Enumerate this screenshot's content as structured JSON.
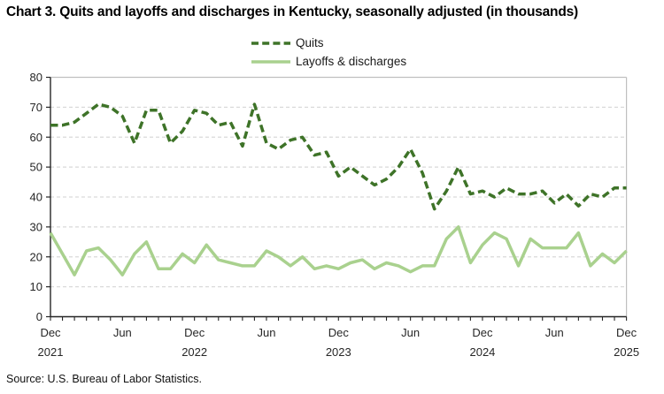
{
  "title": "Chart 3. Quits and layoffs and discharges in Kentucky, seasonally adjusted (in thousands)",
  "source": "Source: U.S. Bureau of Labor Statistics.",
  "chart_data": {
    "type": "line",
    "x_start": "Dec 2021",
    "x_end": "Dec 2025",
    "x_interval": "monthly",
    "ylim": [
      0,
      80
    ],
    "y_ticks": [
      0,
      10,
      20,
      30,
      40,
      50,
      60,
      70,
      80
    ],
    "grid": "horizontal-dashed",
    "legend_position": "top-center",
    "x_ticks": [
      {
        "index": 0,
        "label": "Dec",
        "year": "2021"
      },
      {
        "index": 6,
        "label": "Jun"
      },
      {
        "index": 12,
        "label": "Dec",
        "year": "2022"
      },
      {
        "index": 18,
        "label": "Jun"
      },
      {
        "index": 24,
        "label": "Dec",
        "year": "2023"
      },
      {
        "index": 30,
        "label": "Jun"
      },
      {
        "index": 36,
        "label": "Dec",
        "year": "2024"
      },
      {
        "index": 42,
        "label": "Jun"
      },
      {
        "index": 48,
        "label": "Dec",
        "year": "2025"
      }
    ],
    "series": [
      {
        "name": "Quits",
        "color": "#3e7328",
        "dashed": true,
        "values": [
          64,
          64,
          65,
          68,
          71,
          70,
          67,
          58,
          69,
          69,
          58,
          62,
          69,
          68,
          64,
          65,
          57,
          71,
          58,
          56,
          59,
          60,
          54,
          55,
          47,
          50,
          47,
          44,
          46,
          50,
          56,
          48,
          36,
          42,
          50,
          41,
          42,
          40,
          43,
          41,
          41,
          42,
          38,
          41,
          37,
          41,
          40,
          43,
          43
        ]
      },
      {
        "name": "Layoffs & discharges",
        "color": "#a9d18e",
        "dashed": false,
        "values": [
          28,
          21,
          14,
          22,
          23,
          19,
          14,
          21,
          25,
          16,
          16,
          21,
          18,
          24,
          19,
          18,
          17,
          17,
          22,
          20,
          17,
          20,
          16,
          17,
          16,
          18,
          19,
          16,
          18,
          17,
          15,
          17,
          17,
          26,
          30,
          18,
          24,
          28,
          26,
          17,
          26,
          23,
          23,
          23,
          28,
          17,
          21,
          18,
          22
        ]
      }
    ],
    "style": {
      "gridline_color": "#d9d9d9",
      "border_color": "#bfbfbf",
      "axis_color": "#262626",
      "label_color": "#262626"
    }
  }
}
